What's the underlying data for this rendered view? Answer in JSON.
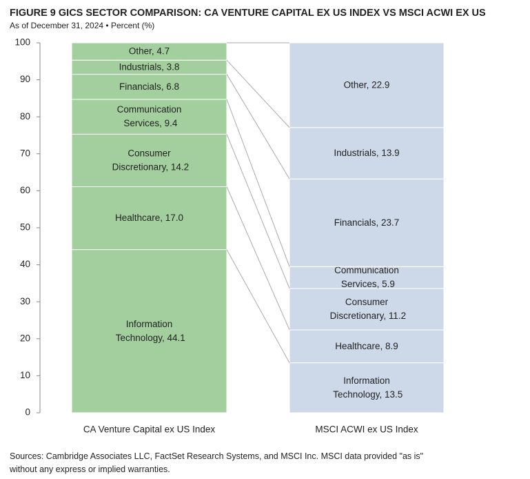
{
  "chart_data": {
    "type": "stacked-bar",
    "title": "FIGURE 9  GICS SECTOR COMPARISON: CA VENTURE CAPITAL EX US INDEX VS MSCI ACWI EX US",
    "subtitle": "As of December 31, 2024 • Percent (%)",
    "categories": [
      "CA Venture Capital ex US Index",
      "MSCI ACWI ex US Index"
    ],
    "colors": [
      "#a3cf9f",
      "#cdd9e8"
    ],
    "series": [
      {
        "values": [
          44.1,
          13.5
        ],
        "value_labels": [
          "Information Technology, 44.1",
          "Information Technology, 13.5"
        ]
      },
      {
        "values": [
          17.0,
          8.9
        ],
        "value_labels": [
          "Healthcare, 17.0",
          "Healthcare, 8.9"
        ]
      },
      {
        "values": [
          14.2,
          11.2
        ],
        "value_labels": [
          "Consumer Discretionary, 14.2",
          "Consumer Discretionary, 11.2"
        ]
      },
      {
        "values": [
          9.4,
          5.9
        ],
        "value_labels": [
          "Communication Services, 9.4",
          "Communication Services, 5.9"
        ]
      },
      {
        "values": [
          6.8,
          23.7
        ],
        "value_labels": [
          "Financials, 6.8",
          "Financials, 23.7"
        ]
      },
      {
        "values": [
          3.8,
          13.9
        ],
        "value_labels": [
          "Industrials, 3.8",
          "Industrials, 13.9"
        ]
      },
      {
        "values": [
          4.7,
          22.9
        ],
        "value_labels": [
          "Other, 4.7",
          "Other, 22.9"
        ]
      }
    ],
    "ylim": [
      0,
      100
    ],
    "yticks": [
      0,
      10,
      20,
      30,
      40,
      50,
      60,
      70,
      80,
      90,
      100
    ],
    "source": "Sources: Cambridge Associates LLC, FactSet Research Systems, and MSCI Inc. MSCI data provided \"as is\" without any express or implied warranties."
  }
}
